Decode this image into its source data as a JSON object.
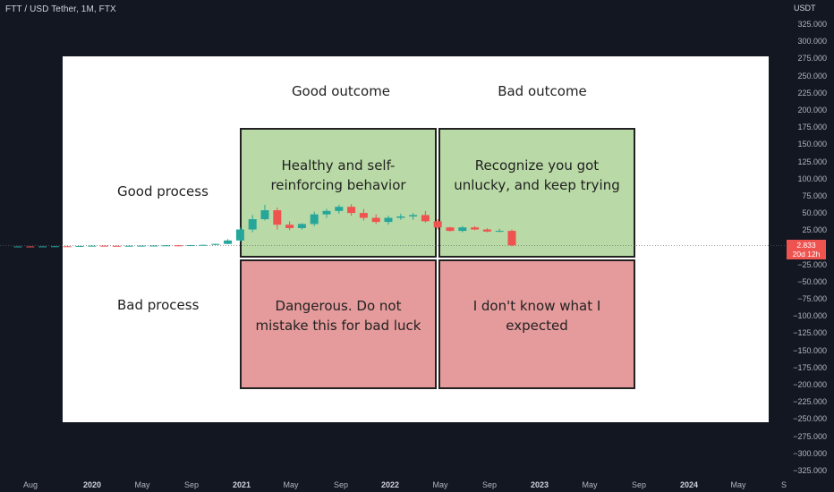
{
  "header": {
    "title": "FTT / USD Tether, 1M, FTX",
    "axis_unit": "USDT"
  },
  "price_label": {
    "price": "2.833",
    "countdown": "20d 12h",
    "color": "#ef5350"
  },
  "meme": {
    "col_good": "Good outcome",
    "col_bad": "Bad outcome",
    "row_good": "Good process",
    "row_bad": "Bad process",
    "cell_gg": "Healthy and self-reinforcing behavior",
    "cell_gb": "Recognize you got unlucky, and keep trying",
    "cell_bg": "Dangerous. Do not mistake this for bad luck",
    "cell_bb": "I don't know what I expected",
    "green": "#b9d9a6",
    "red": "#e59a9b"
  },
  "chart_data": {
    "type": "candlestick",
    "title": "FTT / USD Tether, 1M, FTX",
    "ylabel": "USDT",
    "ylim": [
      -325,
      325
    ],
    "yticks": [
      "325.000",
      "300.000",
      "275.000",
      "250.000",
      "225.000",
      "200.000",
      "175.000",
      "150.000",
      "125.000",
      "100.000",
      "75.000",
      "50.000",
      "25.000",
      "−25.000",
      "−50.000",
      "−75.000",
      "−100.000",
      "−125.000",
      "−150.000",
      "−175.000",
      "−200.000",
      "−225.000",
      "−250.000",
      "−275.000",
      "−300.000",
      "−325.000"
    ],
    "xticks": [
      {
        "label": "Aug",
        "year": false
      },
      {
        "label": "2020",
        "year": true
      },
      {
        "label": "May",
        "year": false
      },
      {
        "label": "Sep",
        "year": false
      },
      {
        "label": "2021",
        "year": true
      },
      {
        "label": "May",
        "year": false
      },
      {
        "label": "Sep",
        "year": false
      },
      {
        "label": "2022",
        "year": true
      },
      {
        "label": "May",
        "year": false
      },
      {
        "label": "Sep",
        "year": false
      },
      {
        "label": "2023",
        "year": true
      },
      {
        "label": "May",
        "year": false
      },
      {
        "label": "Sep",
        "year": false
      },
      {
        "label": "2024",
        "year": true
      },
      {
        "label": "May",
        "year": false
      },
      {
        "label": "S",
        "year": false
      }
    ],
    "up_color": "#26a69a",
    "down_color": "#ef5350",
    "candles": [
      {
        "o": 1.0,
        "h": 1.6,
        "l": 0.8,
        "c": 1.3
      },
      {
        "o": 1.3,
        "h": 1.6,
        "l": 0.9,
        "c": 1.1
      },
      {
        "o": 1.1,
        "h": 1.5,
        "l": 0.8,
        "c": 1.4
      },
      {
        "o": 1.4,
        "h": 1.9,
        "l": 1.1,
        "c": 1.6
      },
      {
        "o": 1.6,
        "h": 2.0,
        "l": 1.3,
        "c": 1.5
      },
      {
        "o": 1.5,
        "h": 2.2,
        "l": 1.3,
        "c": 2.0
      },
      {
        "o": 2.0,
        "h": 2.6,
        "l": 1.7,
        "c": 2.4
      },
      {
        "o": 2.4,
        "h": 2.8,
        "l": 2.0,
        "c": 2.2
      },
      {
        "o": 2.2,
        "h": 2.5,
        "l": 1.6,
        "c": 2.0
      },
      {
        "o": 2.0,
        "h": 2.4,
        "l": 1.7,
        "c": 2.3
      },
      {
        "o": 2.3,
        "h": 2.6,
        "l": 2.0,
        "c": 2.4
      },
      {
        "o": 2.4,
        "h": 2.9,
        "l": 2.1,
        "c": 2.6
      },
      {
        "o": 2.6,
        "h": 3.1,
        "l": 2.3,
        "c": 2.9
      },
      {
        "o": 2.9,
        "h": 3.3,
        "l": 2.5,
        "c": 2.7
      },
      {
        "o": 2.7,
        "h": 3.4,
        "l": 2.4,
        "c": 3.2
      },
      {
        "o": 3.2,
        "h": 4.0,
        "l": 2.8,
        "c": 3.6
      },
      {
        "o": 3.6,
        "h": 5.5,
        "l": 3.2,
        "c": 5.0
      },
      {
        "o": 5.0,
        "h": 12.0,
        "l": 4.6,
        "c": 10.0
      },
      {
        "o": 10.0,
        "h": 29.0,
        "l": 8.5,
        "c": 26.0
      },
      {
        "o": 26.0,
        "h": 47.0,
        "l": 22.0,
        "c": 41.0
      },
      {
        "o": 41.0,
        "h": 62.0,
        "l": 39.0,
        "c": 54.0
      },
      {
        "o": 54.0,
        "h": 58.0,
        "l": 26.0,
        "c": 33.0
      },
      {
        "o": 33.0,
        "h": 38.0,
        "l": 25.0,
        "c": 28.0
      },
      {
        "o": 28.0,
        "h": 35.0,
        "l": 26.0,
        "c": 34.0
      },
      {
        "o": 34.0,
        "h": 52.0,
        "l": 31.0,
        "c": 48.0
      },
      {
        "o": 48.0,
        "h": 56.0,
        "l": 43.0,
        "c": 53.0
      },
      {
        "o": 53.0,
        "h": 62.0,
        "l": 49.0,
        "c": 59.0
      },
      {
        "o": 59.0,
        "h": 63.0,
        "l": 46.0,
        "c": 50.0
      },
      {
        "o": 50.0,
        "h": 56.0,
        "l": 39.0,
        "c": 43.0
      },
      {
        "o": 43.0,
        "h": 48.0,
        "l": 34.0,
        "c": 37.0
      },
      {
        "o": 37.0,
        "h": 46.0,
        "l": 33.0,
        "c": 43.0
      },
      {
        "o": 43.0,
        "h": 49.0,
        "l": 40.0,
        "c": 45.0
      },
      {
        "o": 45.0,
        "h": 50.0,
        "l": 40.0,
        "c": 47.0
      },
      {
        "o": 47.0,
        "h": 53.0,
        "l": 36.0,
        "c": 38.0
      },
      {
        "o": 38.0,
        "h": 41.0,
        "l": 26.0,
        "c": 29.0
      },
      {
        "o": 29.0,
        "h": 30.0,
        "l": 23.0,
        "c": 24.0
      },
      {
        "o": 24.0,
        "h": 31.0,
        "l": 22.0,
        "c": 29.0
      },
      {
        "o": 29.0,
        "h": 31.0,
        "l": 25.0,
        "c": 26.0
      },
      {
        "o": 26.0,
        "h": 28.0,
        "l": 22.0,
        "c": 23.0
      },
      {
        "o": 23.0,
        "h": 27.0,
        "l": 22.0,
        "c": 24.0
      },
      {
        "o": 24.0,
        "h": 26.0,
        "l": 1.3,
        "c": 2.833
      }
    ]
  }
}
